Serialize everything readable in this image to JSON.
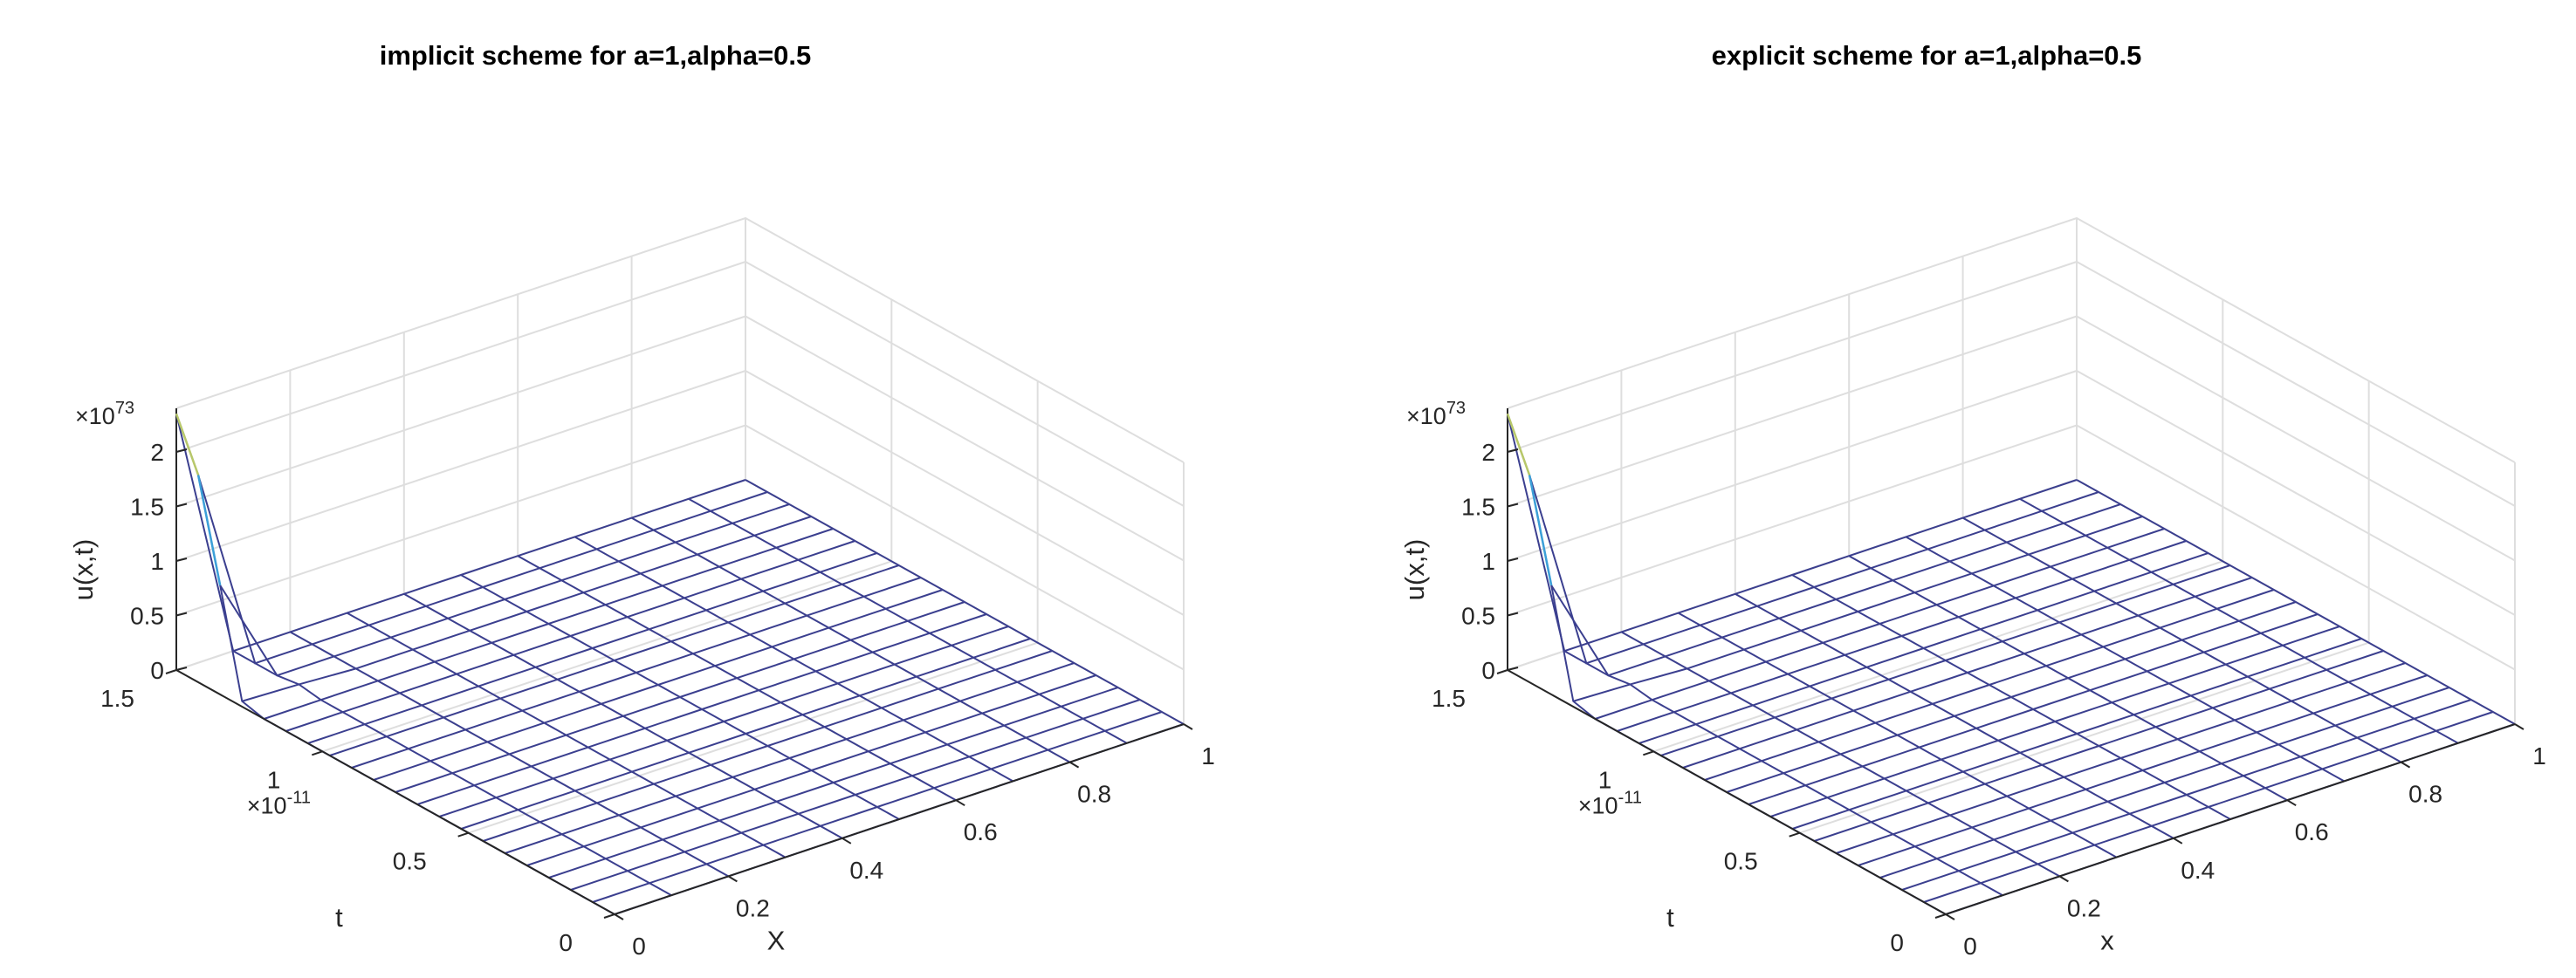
{
  "chart_data": [
    {
      "type": "surface-mesh",
      "title": "implicit scheme for a=1,alpha=0.5",
      "xlabel": "X",
      "ylabel": "t",
      "zlabel": "u(x,t)",
      "x_ticks": [
        "0",
        "0.2",
        "0.4",
        "0.6",
        "0.8",
        "1"
      ],
      "t_ticks": [
        "0",
        "0.5",
        "1",
        "1.5"
      ],
      "z_ticks": [
        "0",
        "0.5",
        "1",
        "1.5",
        "2"
      ],
      "t_exponent": "-11",
      "z_exponent": "73",
      "xlim": [
        0,
        1
      ],
      "tlim": [
        0,
        1.5
      ],
      "zlim": [
        0,
        2.4
      ],
      "x_nodes": [
        0,
        0.1,
        0.2,
        0.3,
        0.4,
        0.5,
        0.6,
        0.7,
        0.8,
        0.9,
        1.0
      ],
      "t_nodes": [
        0,
        0.075,
        0.15,
        0.225,
        0.3,
        0.375,
        0.45,
        0.525,
        0.6,
        0.675,
        0.75,
        0.825,
        0.9,
        0.975,
        1.05,
        1.125,
        1.2,
        1.275,
        1.35,
        1.425,
        1.5
      ],
      "peak_values": [
        1.0,
        1.9,
        2.35
      ],
      "mesh_color": "#3b3f8f",
      "grid": true
    },
    {
      "type": "surface-mesh",
      "title": "explicit scheme for a=1,alpha=0.5",
      "xlabel": "x",
      "ylabel": "t",
      "zlabel": "u(x,t)",
      "x_ticks": [
        "0",
        "0.2",
        "0.4",
        "0.6",
        "0.8",
        "1"
      ],
      "t_ticks": [
        "0",
        "0.5",
        "1",
        "1.5"
      ],
      "z_ticks": [
        "0",
        "0.5",
        "1",
        "1.5",
        "2"
      ],
      "t_exponent": "-11",
      "z_exponent": "73",
      "xlim": [
        0,
        1
      ],
      "tlim": [
        0,
        1.5
      ],
      "zlim": [
        0,
        2.4
      ],
      "x_nodes": [
        0,
        0.1,
        0.2,
        0.3,
        0.4,
        0.5,
        0.6,
        0.7,
        0.8,
        0.9,
        1.0
      ],
      "t_nodes": [
        0,
        0.075,
        0.15,
        0.225,
        0.3,
        0.375,
        0.45,
        0.525,
        0.6,
        0.675,
        0.75,
        0.825,
        0.9,
        0.975,
        1.05,
        1.125,
        1.2,
        1.275,
        1.35,
        1.425,
        1.5
      ],
      "peak_values": [
        1.0,
        1.9,
        2.35
      ],
      "mesh_color": "#3b3f8f",
      "grid": true
    }
  ]
}
